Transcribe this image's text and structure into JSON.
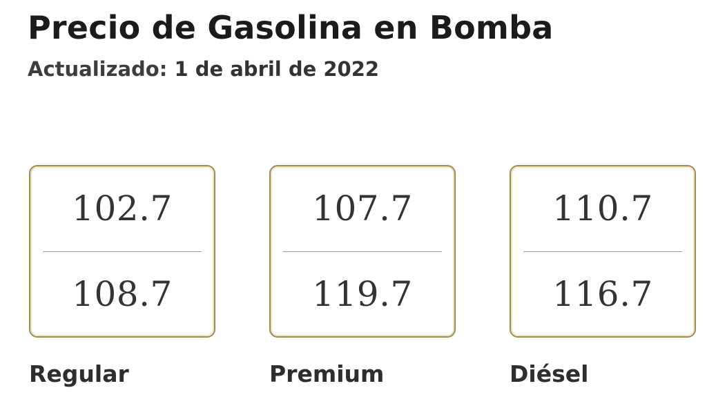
{
  "page": {
    "title": "Precio de Gasolina en Bomba",
    "updated_label": "Actualizado:",
    "updated_date": "1 de abril de 2022"
  },
  "colors": {
    "background": "#ffffff",
    "card_border": "#9d8c52",
    "card_border_inner_glow": "#ece4c0",
    "title_text": "#1b1b1b",
    "subtitle_text": "#3d3d3d",
    "price_text": "#333333",
    "label_text": "#2e2e2e",
    "divider": "#999999"
  },
  "cards": [
    {
      "label": "Regular",
      "price_top": "102.7",
      "price_bottom": "108.7"
    },
    {
      "label": "Premium",
      "price_top": "107.7",
      "price_bottom": "119.7"
    },
    {
      "label": "Diésel",
      "price_top": "110.7",
      "price_bottom": "116.7"
    }
  ],
  "chart_data": {
    "type": "table",
    "title": "Precio de Gasolina en Bomba",
    "subtitle": "Actualizado: 1 de abril de 2022",
    "categories": [
      "Regular",
      "Premium",
      "Diésel"
    ],
    "series": [
      {
        "name": "precio_superior",
        "values": [
          102.7,
          107.7,
          110.7
        ]
      },
      {
        "name": "precio_inferior",
        "values": [
          108.7,
          119.7,
          116.7
        ]
      }
    ]
  }
}
